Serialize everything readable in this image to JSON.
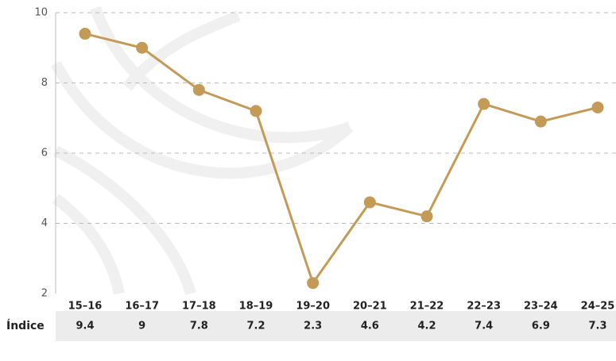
{
  "chart_data": {
    "type": "line",
    "categories": [
      "15–16",
      "16–17",
      "17–18",
      "18–19",
      "19–20",
      "20–21",
      "21–22",
      "22–23",
      "23–24",
      "24–25"
    ],
    "values": [
      9.4,
      9,
      7.8,
      7.2,
      2.3,
      4.6,
      4.2,
      7.4,
      6.9,
      7.3
    ],
    "color": "#c49a57",
    "ylim": [
      2,
      10
    ],
    "yticks": [
      2,
      4,
      6,
      8,
      10
    ],
    "grid": true,
    "table_row_label": "Índice"
  }
}
